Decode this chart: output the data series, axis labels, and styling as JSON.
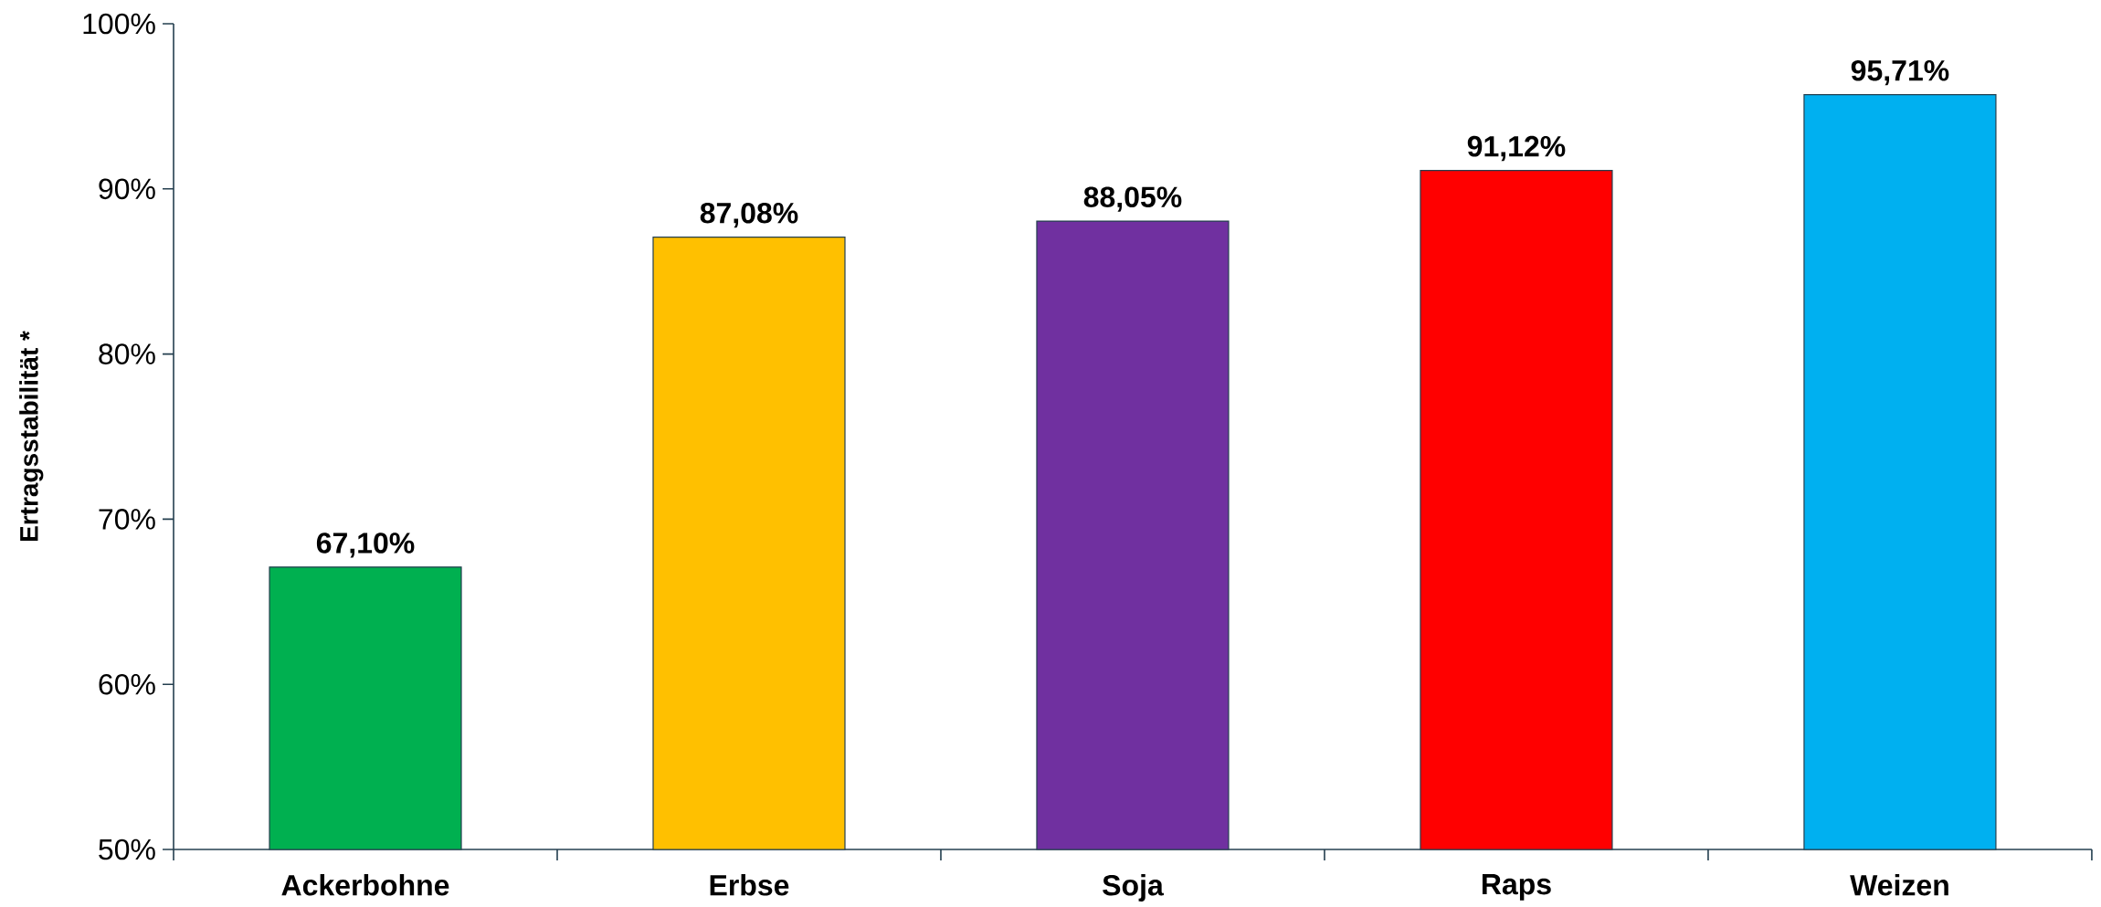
{
  "chart_data": {
    "type": "bar",
    "ylabel": "Ertragsstabilität *",
    "categories": [
      "Ackerbohne",
      "Erbse",
      "Soja",
      "Raps",
      "Weizen"
    ],
    "values": [
      67.1,
      87.08,
      88.05,
      91.12,
      95.71
    ],
    "colors": [
      "#00b050",
      "#ffc000",
      "#7030a0",
      "#ff0000",
      "#00b0f0"
    ],
    "value_labels": [
      "67,10%",
      "87,08%",
      "88,05%",
      "91,12%",
      "95,71%"
    ],
    "ylim": [
      50,
      100
    ],
    "yticks": [
      {
        "value": 50,
        "label": "50%"
      },
      {
        "value": 60,
        "label": "60%"
      },
      {
        "value": 70,
        "label": "70%"
      },
      {
        "value": 80,
        "label": "80%"
      },
      {
        "value": 90,
        "label": "90%"
      },
      {
        "value": 100,
        "label": "100%"
      }
    ],
    "grid": false
  }
}
